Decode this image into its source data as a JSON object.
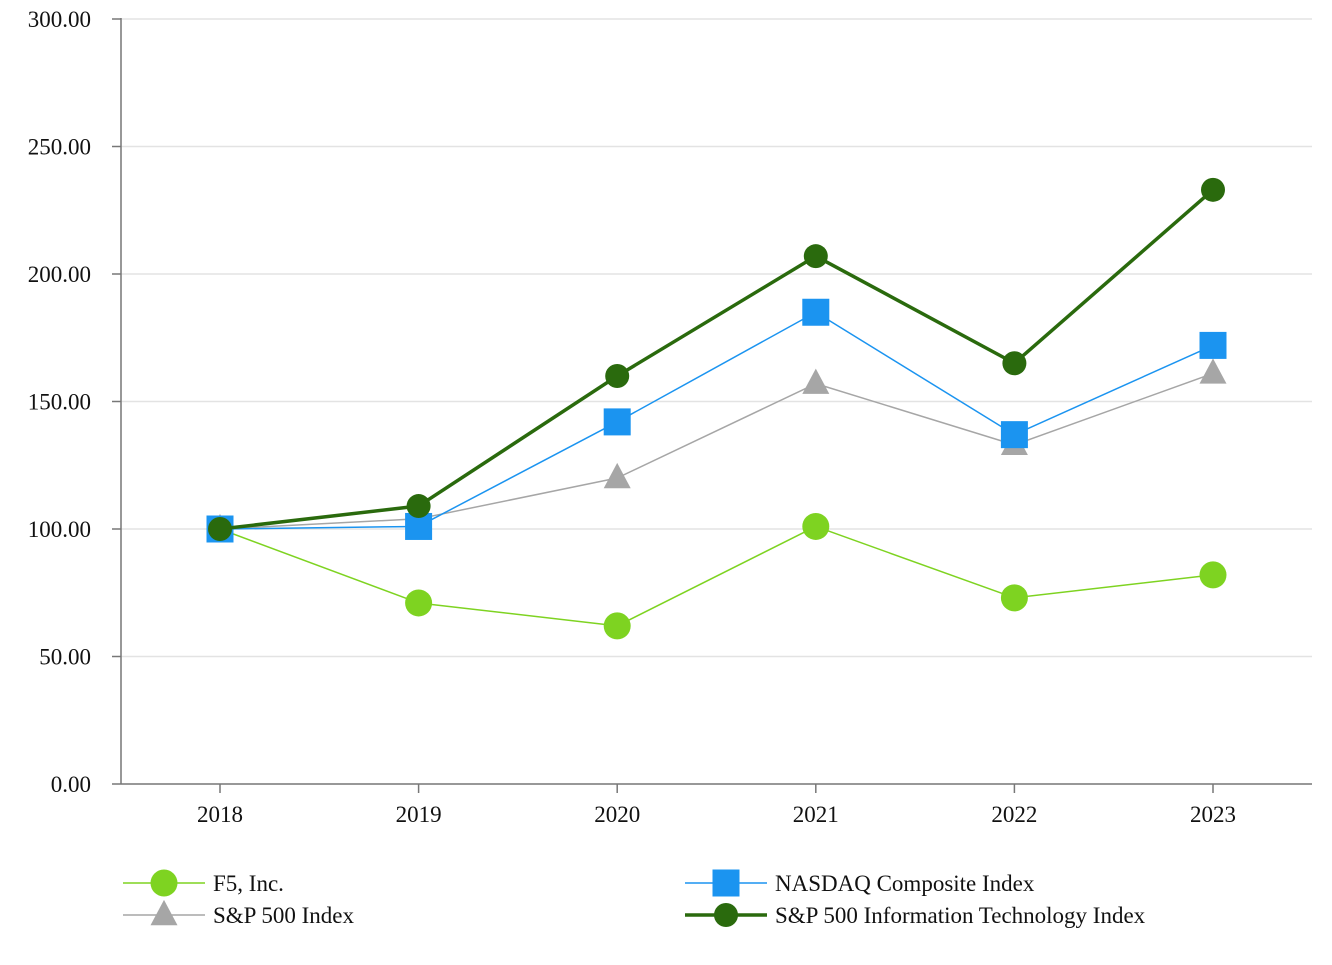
{
  "chart_data": {
    "type": "line",
    "title": "",
    "xlabel": "",
    "ylabel": "",
    "categories": [
      "2018",
      "2019",
      "2020",
      "2021",
      "2022",
      "2023"
    ],
    "ylim": [
      0,
      300
    ],
    "yticks": [
      "0.00",
      "50.00",
      "100.00",
      "150.00",
      "200.00",
      "250.00",
      "300.00"
    ],
    "grid": "horizontal",
    "legend_position": "bottom",
    "series": [
      {
        "name": "F5, Inc.",
        "color": "#7ED321",
        "marker": "circle",
        "values": [
          100,
          71,
          62,
          101,
          73,
          82
        ]
      },
      {
        "name": "NASDAQ Composite Index",
        "color": "#1B94F0",
        "marker": "square",
        "values": [
          100,
          101,
          142,
          185,
          137,
          172
        ]
      },
      {
        "name": "S&P 500 Index",
        "color": "#A6A6A6",
        "marker": "triangle",
        "values": [
          100,
          104,
          120,
          157,
          133,
          161
        ]
      },
      {
        "name": "S&P 500 Information Technology Index",
        "color": "#2A6A0D",
        "marker": "circle",
        "values": [
          100,
          109,
          160,
          207,
          165,
          233
        ]
      }
    ]
  }
}
